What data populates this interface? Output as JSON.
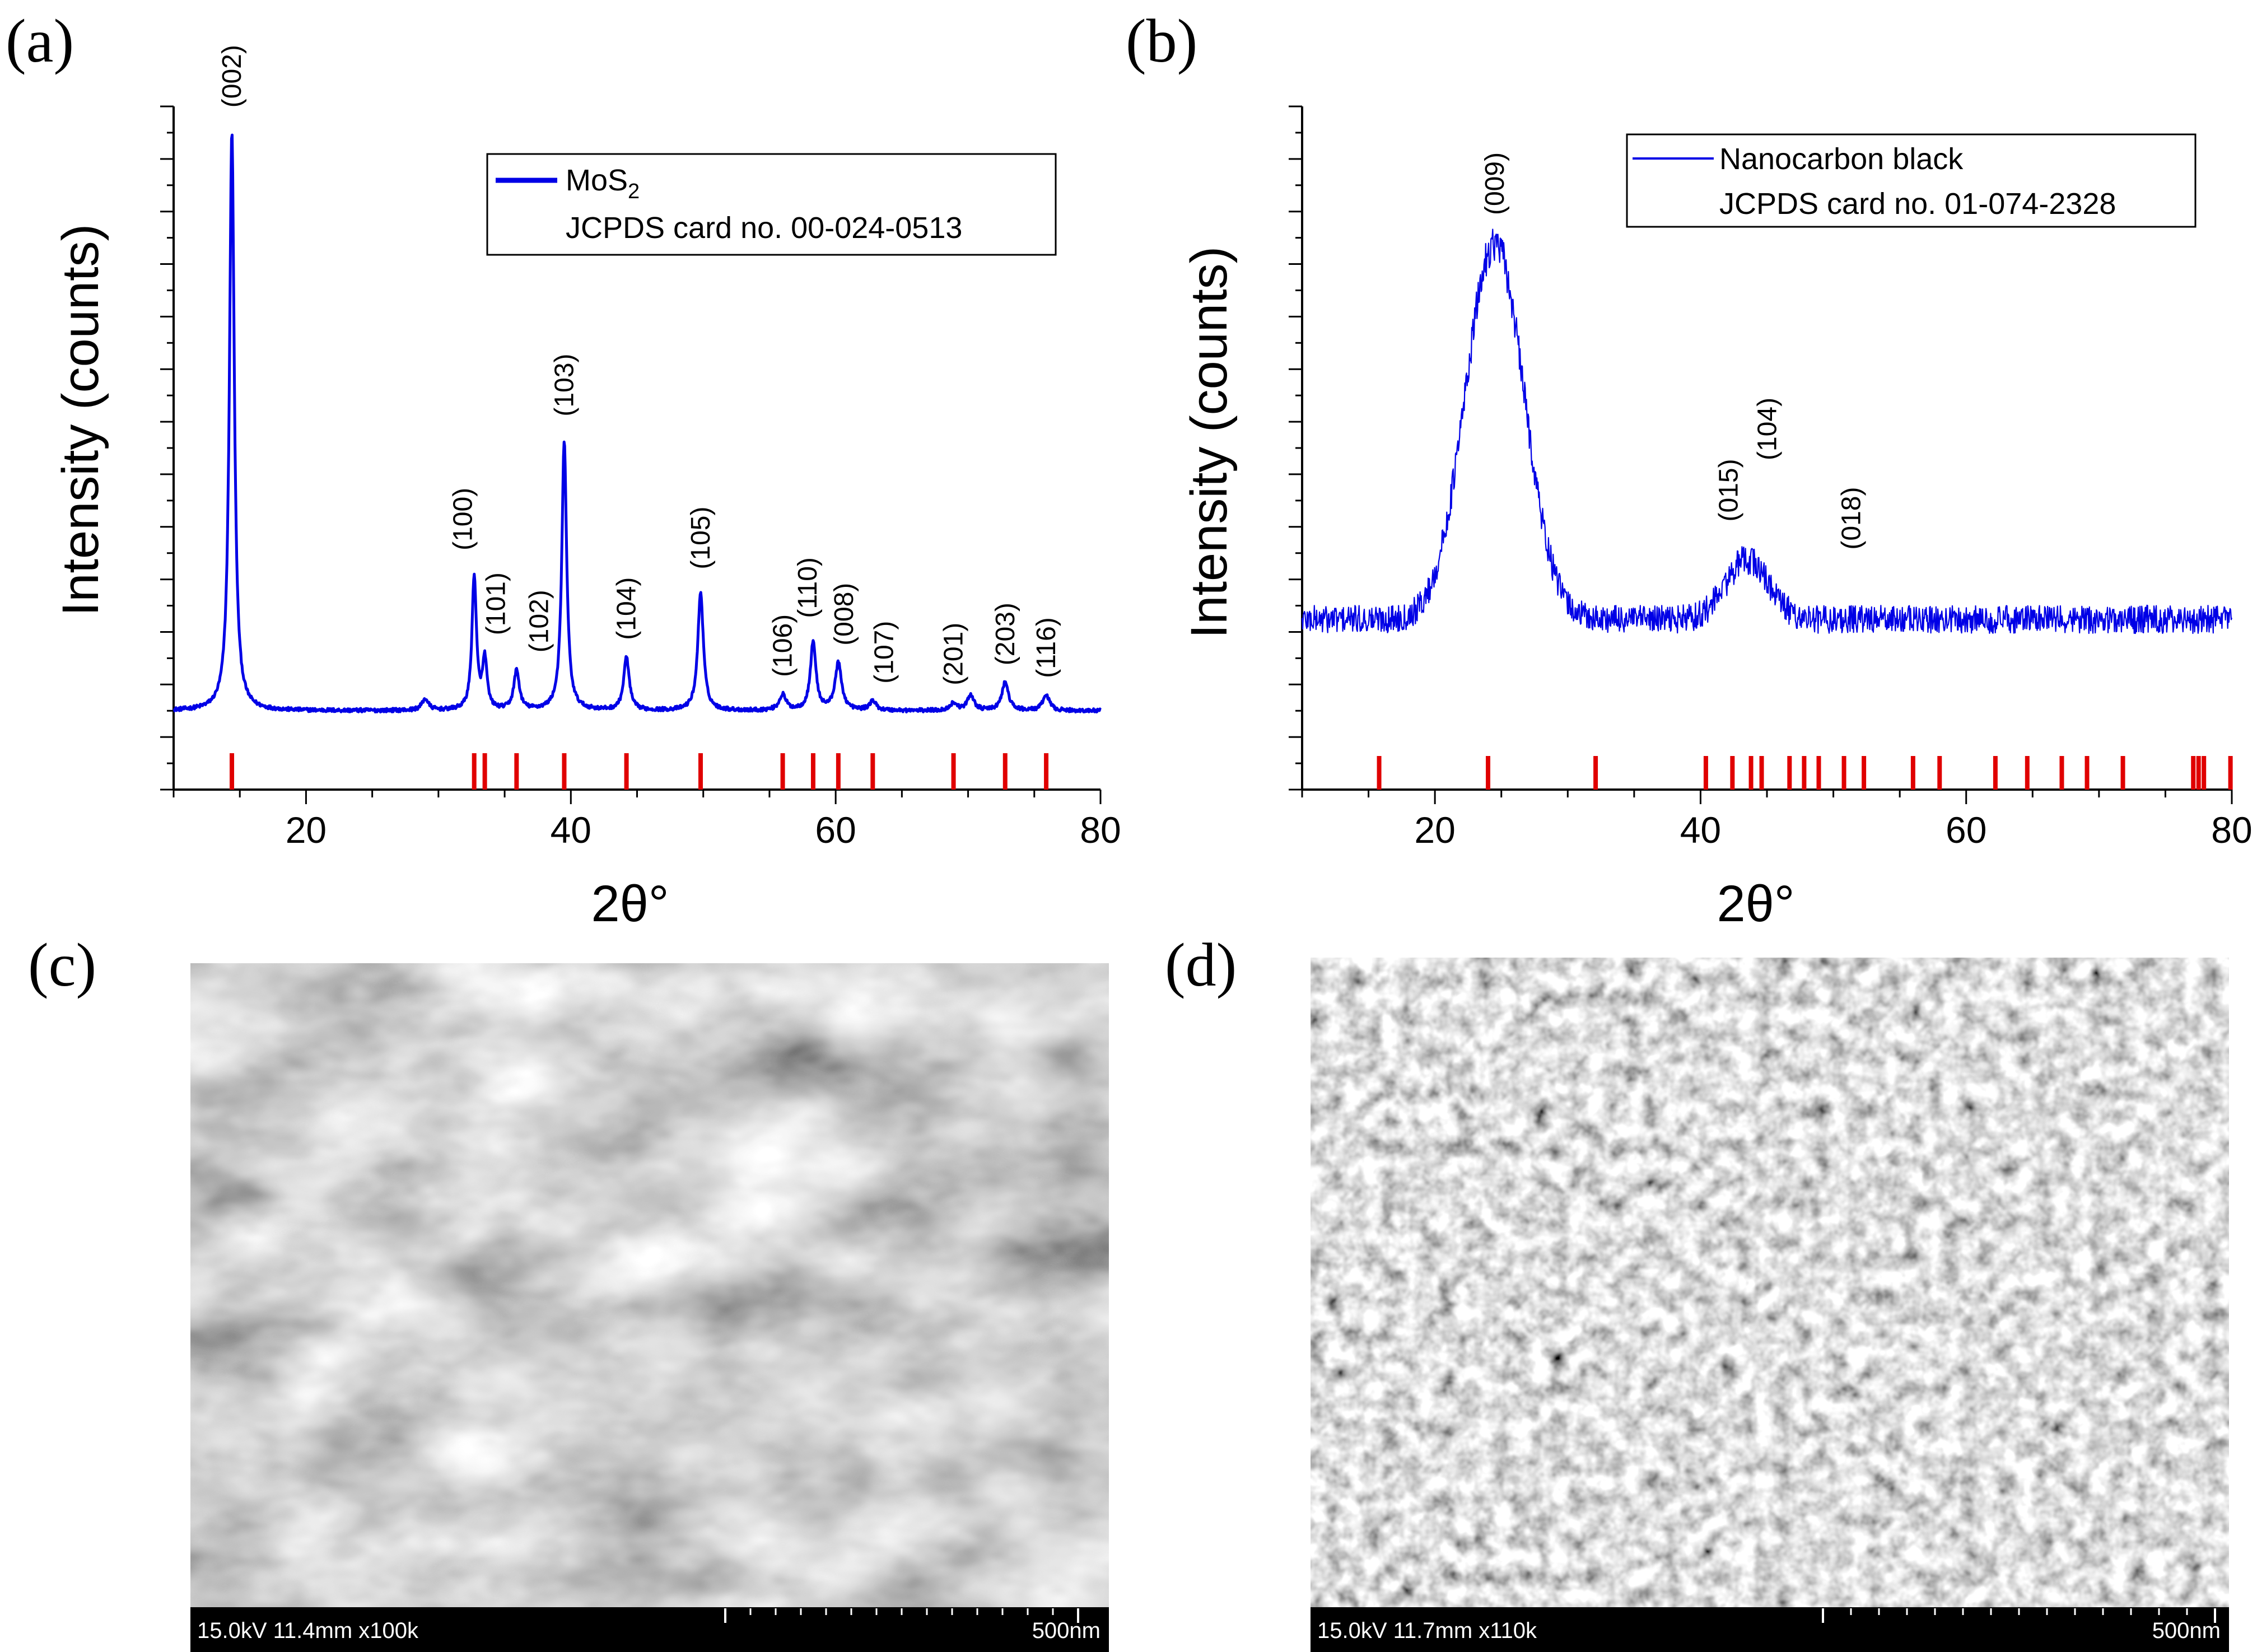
{
  "panels": {
    "a": "(a)",
    "b": "(b)",
    "c": "(c)",
    "d": "(d)"
  },
  "chart_data": [
    {
      "type": "line",
      "panel": "a",
      "xlabel": "2θ°",
      "ylabel": "Intensity (counts)",
      "xlim": [
        10,
        80
      ],
      "xticks": [
        20,
        40,
        60,
        80
      ],
      "y_tick_labels": "none",
      "series": [
        {
          "name": "MoS₂",
          "color": "#0000e6",
          "baseline": 0.05,
          "peaks": [
            {
              "x": 14.4,
              "h": 0.93,
              "w": 0.22
            },
            {
              "x": 29.0,
              "h": 0.018,
              "w": 0.3
            },
            {
              "x": 32.7,
              "h": 0.215,
              "w": 0.2
            },
            {
              "x": 33.5,
              "h": 0.08,
              "w": 0.2
            },
            {
              "x": 35.9,
              "h": 0.063,
              "w": 0.25
            },
            {
              "x": 39.5,
              "h": 0.43,
              "w": 0.22
            },
            {
              "x": 44.2,
              "h": 0.085,
              "w": 0.25
            },
            {
              "x": 49.8,
              "h": 0.19,
              "w": 0.25
            },
            {
              "x": 56.0,
              "h": 0.025,
              "w": 0.3
            },
            {
              "x": 58.3,
              "h": 0.11,
              "w": 0.25
            },
            {
              "x": 60.2,
              "h": 0.075,
              "w": 0.3
            },
            {
              "x": 62.8,
              "h": 0.015,
              "w": 0.3
            },
            {
              "x": 68.9,
              "h": 0.012,
              "w": 0.3
            },
            {
              "x": 70.2,
              "h": 0.025,
              "w": 0.3
            },
            {
              "x": 72.8,
              "h": 0.045,
              "w": 0.3
            },
            {
              "x": 75.9,
              "h": 0.025,
              "w": 0.3
            }
          ]
        }
      ],
      "reference_lines": {
        "name": "JCPDS card no. 00-024-0513",
        "color": "#e00000",
        "x": [
          14.4,
          32.7,
          33.5,
          35.9,
          39.5,
          44.2,
          49.8,
          56.0,
          58.3,
          60.2,
          62.8,
          68.9,
          72.8,
          75.9
        ]
      },
      "annotations": [
        {
          "text": "(002)",
          "x": 14.4
        },
        {
          "text": "(100)",
          "x": 32.7
        },
        {
          "text": "(101)",
          "x": 33.5
        },
        {
          "text": "(102)",
          "x": 35.9
        },
        {
          "text": "(103)",
          "x": 39.5
        },
        {
          "text": "(104)",
          "x": 44.2
        },
        {
          "text": "(105)",
          "x": 49.8
        },
        {
          "text": "(106)",
          "x": 56.0
        },
        {
          "text": "(110)",
          "x": 58.3
        },
        {
          "text": "(008)",
          "x": 60.2
        },
        {
          "text": "(107)",
          "x": 62.8
        },
        {
          "text": "(201)",
          "x": 68.9
        },
        {
          "text": "(203)",
          "x": 72.8
        },
        {
          "text": "(116)",
          "x": 75.9
        }
      ],
      "legend": {
        "placement": "top-right",
        "entries": [
          {
            "label": "MoS",
            "sub": "2"
          },
          {
            "label": "JCPDS card no. 00-024-0513",
            "sub": ""
          }
        ]
      }
    },
    {
      "type": "line",
      "panel": "b",
      "xlabel": "2θ°",
      "ylabel": "Intensity (counts)",
      "xlim": [
        10,
        80
      ],
      "xticks": [
        20,
        40,
        60,
        80
      ],
      "y_tick_labels": "none",
      "series": [
        {
          "name": "Nanocarbon black",
          "color": "#0000e6",
          "baseline": 0.2,
          "noise": 0.02,
          "peaks": [
            {
              "x": 24.5,
              "h": 0.6,
              "w": 2.2
            },
            {
              "x": 43.5,
              "h": 0.095,
              "w": 1.6
            }
          ]
        }
      ],
      "reference_lines": {
        "name": "JCPDS card no. 01-074-2328",
        "color": "#e00000",
        "x": [
          15.8,
          24.0,
          32.1,
          40.4,
          42.4,
          43.8,
          44.6,
          46.7,
          47.8,
          48.9,
          50.8,
          52.3,
          56.0,
          58.0,
          62.2,
          64.6,
          67.2,
          69.1,
          71.8,
          77.1,
          77.5,
          77.9,
          79.9
        ]
      },
      "annotations": [
        {
          "text": "(009)",
          "x": 24.5
        },
        {
          "text": "(015)",
          "x": 43.8
        },
        {
          "text": "(104)",
          "x": 44.6
        },
        {
          "text": "(018)",
          "x": 46.7
        }
      ],
      "legend": {
        "placement": "top-right",
        "entries": [
          {
            "label": "Nanocarbon black",
            "sub": ""
          },
          {
            "label": "JCPDS card no. 01-074-2328",
            "sub": ""
          }
        ]
      }
    }
  ],
  "sem": [
    {
      "panel": "c",
      "info": "15.0kV 11.4mm x100k",
      "scale": "500nm"
    },
    {
      "panel": "d",
      "info": "15.0kV 11.7mm x110k",
      "scale": "500nm"
    }
  ],
  "colors": {
    "data_line": "#0000e6",
    "reference": "#e00000",
    "sem_bar": "#000000"
  }
}
